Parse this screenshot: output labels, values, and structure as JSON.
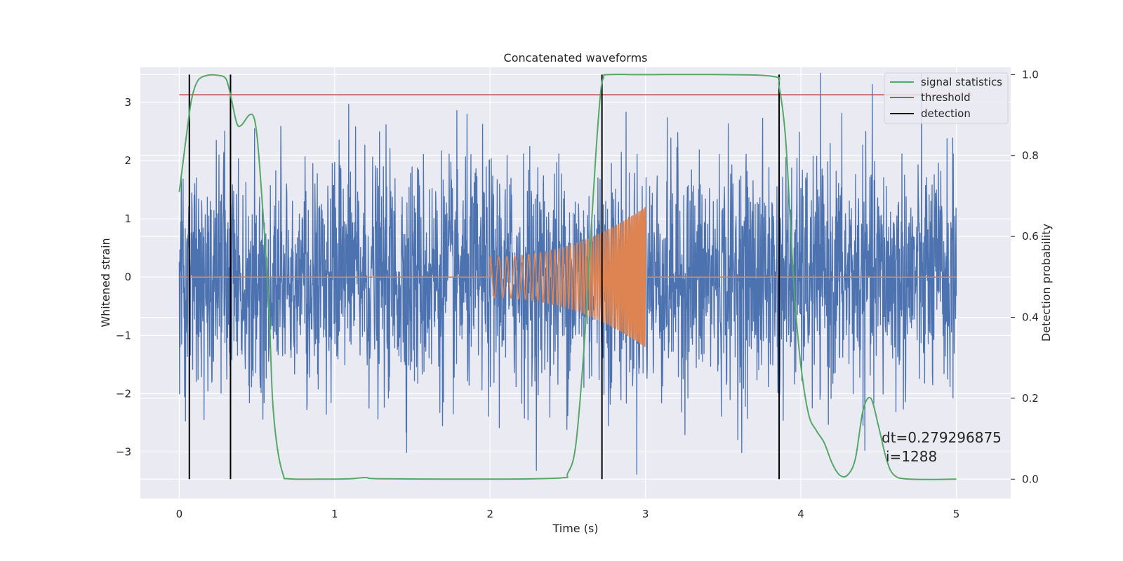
{
  "chart_data": {
    "type": "line",
    "title": "Concatenated waveforms",
    "xlabel": "Time (s)",
    "ylabel": "Whitened strain",
    "y2label": "Detection probability",
    "xlim": [
      -0.25,
      5.35
    ],
    "ylim": [
      -3.8,
      3.6
    ],
    "y2lim": [
      -0.048,
      1.018
    ],
    "x_ticks": [
      "0",
      "1",
      "2",
      "3",
      "4",
      "5"
    ],
    "x_tick_values": [
      0,
      1,
      2,
      3,
      4,
      5
    ],
    "y_ticks": [
      "−3",
      "−2",
      "−1",
      "0",
      "1",
      "2",
      "3"
    ],
    "y_tick_values": [
      -3,
      -2,
      -1,
      0,
      1,
      2,
      3
    ],
    "y2_ticks": [
      "0.0",
      "0.2",
      "0.4",
      "0.6",
      "0.8",
      "1.0"
    ],
    "y2_tick_values": [
      0,
      0.2,
      0.4,
      0.6,
      0.8,
      1.0
    ],
    "grid": true,
    "legend_position": "top-right",
    "legend": [
      {
        "label": "signal statistics",
        "color": "#55a868"
      },
      {
        "label": "threshold",
        "color": "#c44e52"
      },
      {
        "label": "detection",
        "color": "#000000"
      }
    ],
    "colors": {
      "strain": "#4c72b0",
      "injected_signal": "#dd8452",
      "signal_statistics": "#55a868",
      "threshold": "#c44e52",
      "detection": "#000000",
      "plot_background": "#eaeaf2",
      "grid": "#ffffff"
    },
    "strain_noise": {
      "t_start": 0,
      "t_end": 5,
      "typical_amplitude": 1.0,
      "peak_amplitude": 3.5
    },
    "injected_chirp": {
      "t_start": 2.0,
      "t_end": 3.0,
      "amplitude_start": 0.35,
      "amplitude_end": 1.2
    },
    "threshold": {
      "value": 0.95,
      "x_start": 0,
      "x_end": 5.1
    },
    "detections": [
      0.065,
      0.33,
      2.72,
      3.86
    ],
    "signal_statistics": [
      [
        0.0,
        0.71
      ],
      [
        0.02,
        0.77
      ],
      [
        0.05,
        0.86
      ],
      [
        0.08,
        0.94
      ],
      [
        0.12,
        0.985
      ],
      [
        0.18,
        0.998
      ],
      [
        0.25,
        0.998
      ],
      [
        0.3,
        0.99
      ],
      [
        0.33,
        0.95
      ],
      [
        0.37,
        0.88
      ],
      [
        0.4,
        0.875
      ],
      [
        0.45,
        0.9
      ],
      [
        0.48,
        0.895
      ],
      [
        0.5,
        0.85
      ],
      [
        0.52,
        0.76
      ],
      [
        0.55,
        0.6
      ],
      [
        0.58,
        0.4
      ],
      [
        0.6,
        0.2
      ],
      [
        0.63,
        0.08
      ],
      [
        0.67,
        0.01
      ],
      [
        0.7,
        0.001
      ],
      [
        0.9,
        0.0
      ],
      [
        1.1,
        0.001
      ],
      [
        1.2,
        0.004
      ],
      [
        1.3,
        0.001
      ],
      [
        2.0,
        0.0
      ],
      [
        2.45,
        0.003
      ],
      [
        2.5,
        0.015
      ],
      [
        2.55,
        0.08
      ],
      [
        2.6,
        0.3
      ],
      [
        2.64,
        0.55
      ],
      [
        2.68,
        0.8
      ],
      [
        2.71,
        0.95
      ],
      [
        2.73,
        0.993
      ],
      [
        2.76,
        1.0
      ],
      [
        3.0,
        1.0
      ],
      [
        3.5,
        1.0
      ],
      [
        3.83,
        0.995
      ],
      [
        3.86,
        0.97
      ],
      [
        3.9,
        0.85
      ],
      [
        3.93,
        0.65
      ],
      [
        3.96,
        0.45
      ],
      [
        4.0,
        0.28
      ],
      [
        4.05,
        0.16
      ],
      [
        4.1,
        0.12
      ],
      [
        4.15,
        0.09
      ],
      [
        4.2,
        0.04
      ],
      [
        4.25,
        0.01
      ],
      [
        4.3,
        0.01
      ],
      [
        4.35,
        0.05
      ],
      [
        4.4,
        0.17
      ],
      [
        4.45,
        0.2
      ],
      [
        4.5,
        0.13
      ],
      [
        4.55,
        0.05
      ],
      [
        4.6,
        0.01
      ],
      [
        4.7,
        0.0
      ],
      [
        5.0,
        0.0
      ]
    ]
  },
  "annotation": {
    "dt": "dt=0.279296875",
    "i": "i=1288"
  }
}
